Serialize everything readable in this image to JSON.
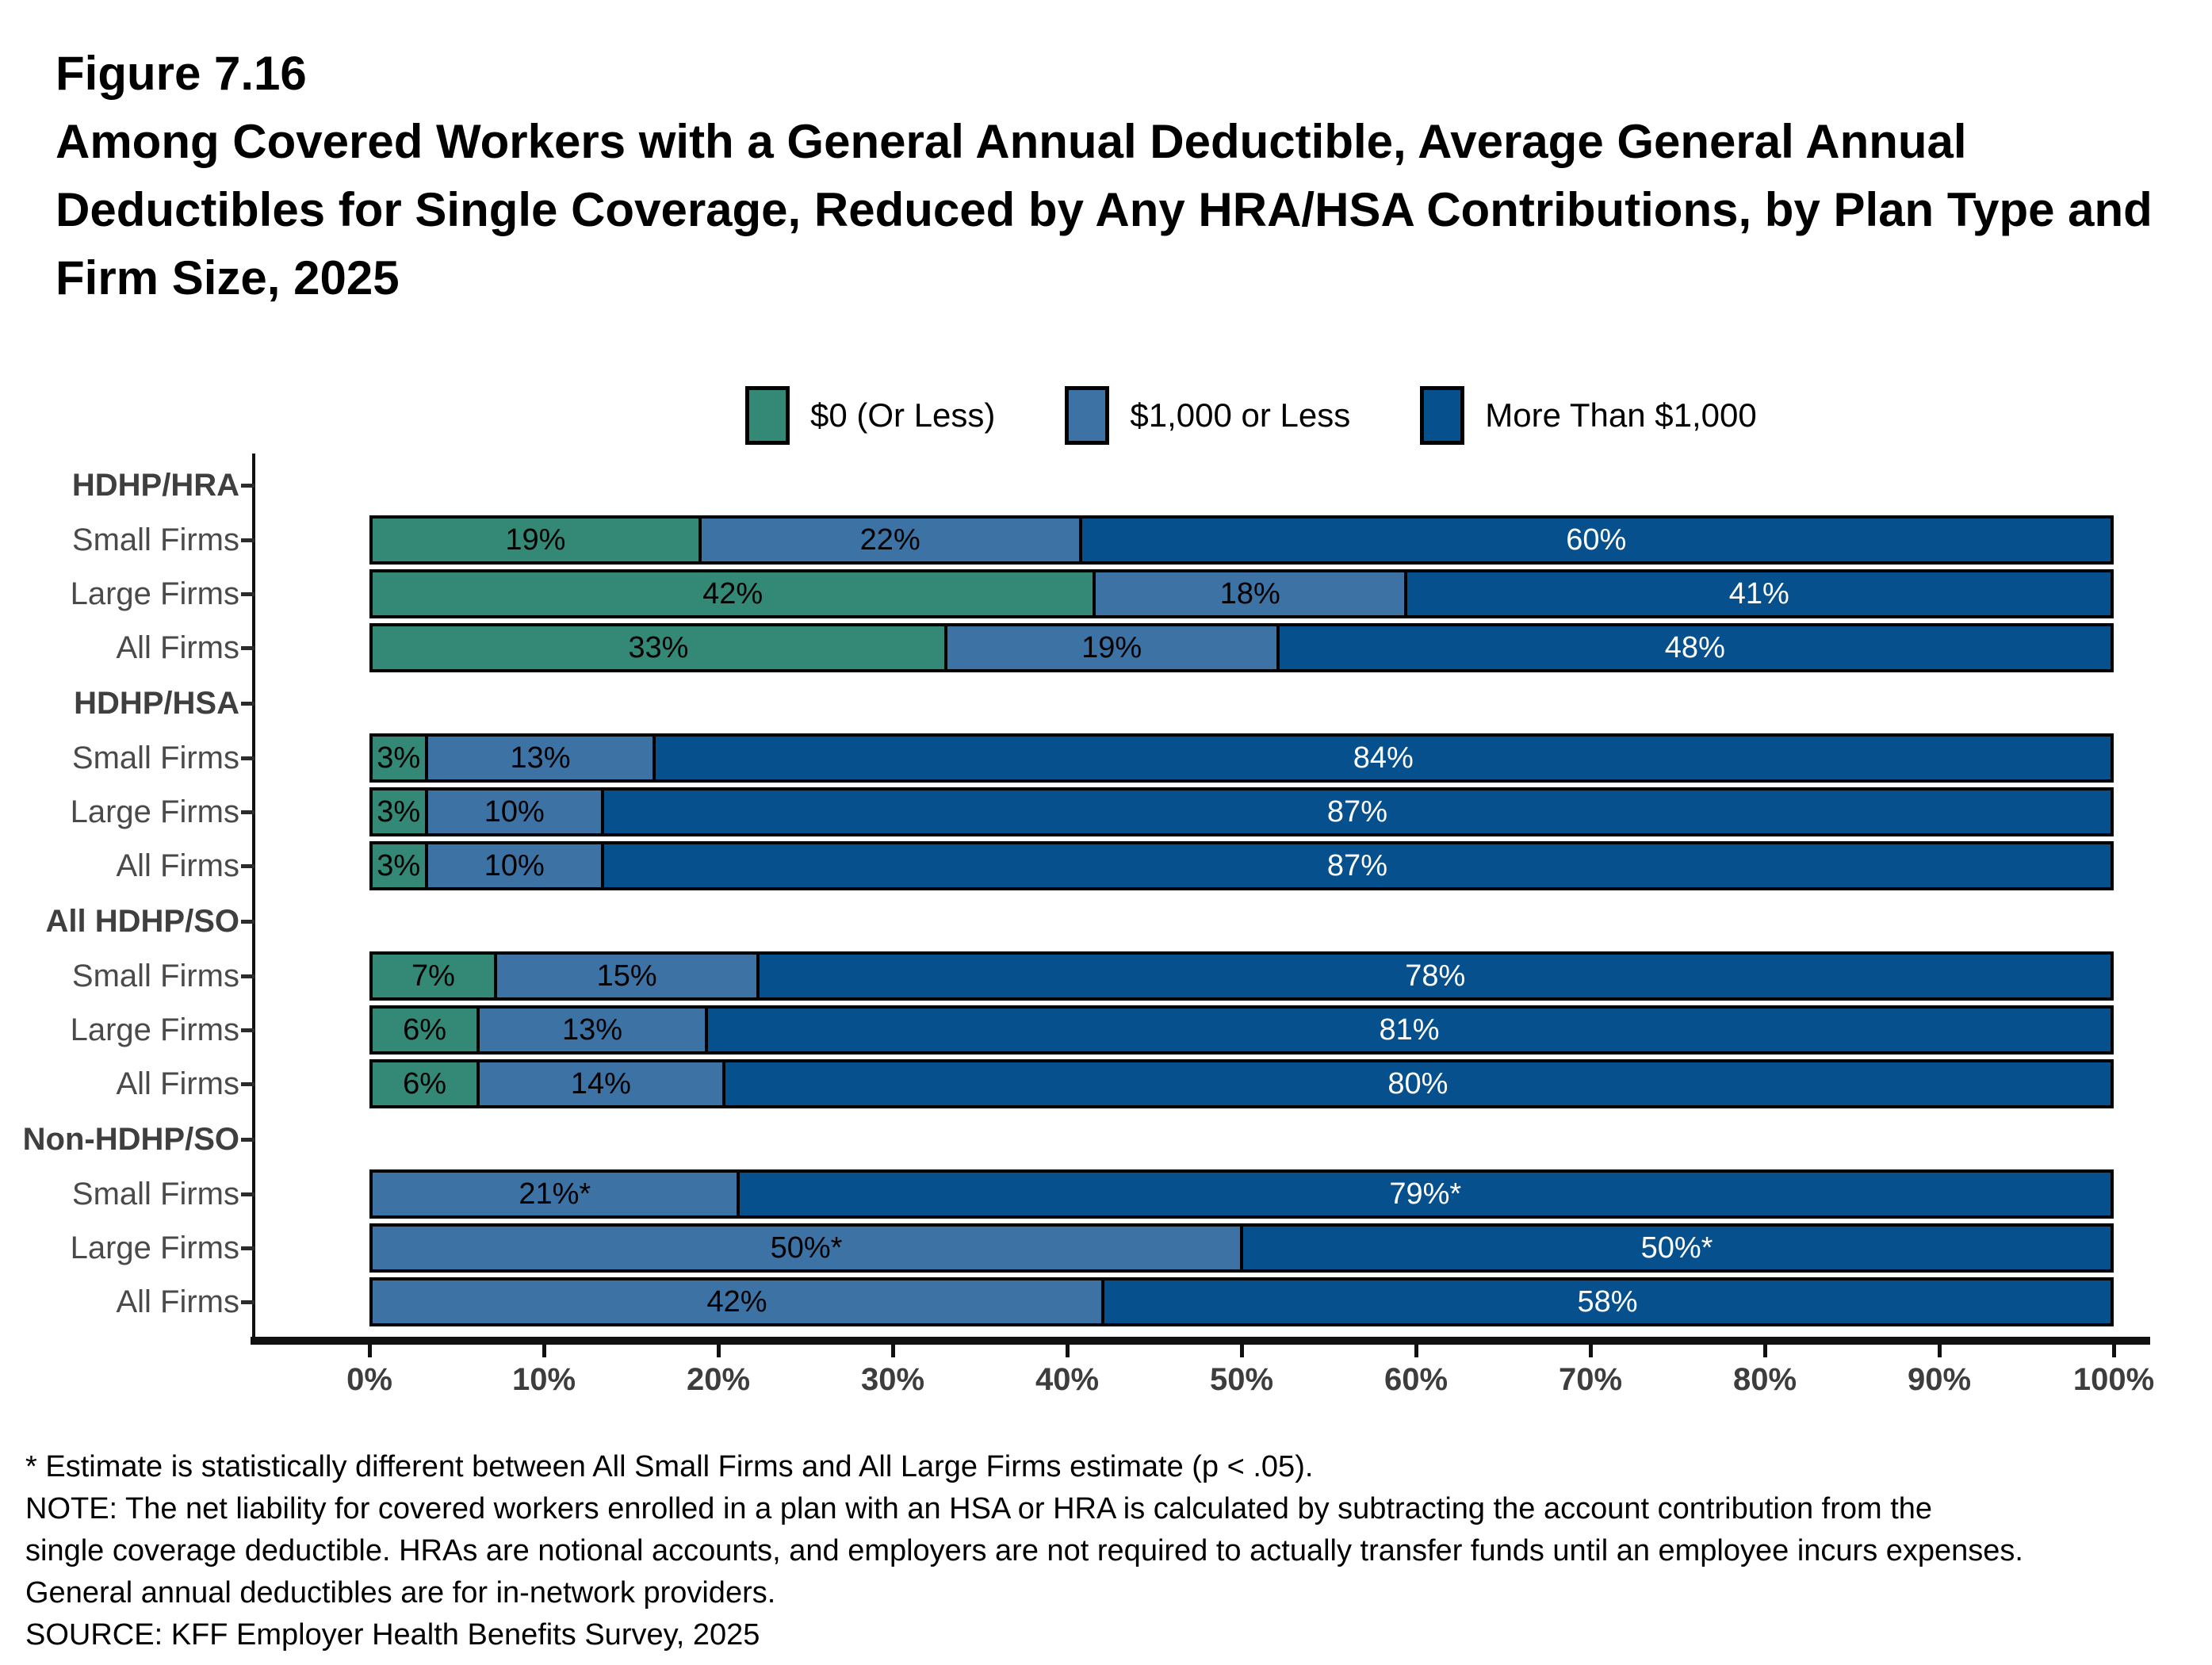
{
  "figure": {
    "number": "Figure 7.16",
    "title_lines": [
      "Among Covered Workers with a General Annual Deductible, Average General Annual",
      "Deductibles for Single Coverage, Reduced by Any HRA/HSA Contributions, by Plan Type and",
      "Firm Size, 2025"
    ]
  },
  "legend": {
    "items": [
      {
        "label": "$0 (Or Less)",
        "color": "#348876",
        "text_color": "#000000"
      },
      {
        "label": "$1,000 or Less",
        "color": "#3D72A4",
        "text_color": "#000000"
      },
      {
        "label": "More Than $1,000",
        "color": "#07508E",
        "text_color": "#FFFFFF"
      }
    ]
  },
  "chart_data": {
    "type": "bar",
    "orientation": "horizontal",
    "stacked": true,
    "unit": "percent",
    "xlim": [
      0,
      100
    ],
    "x_ticks": [
      "0%",
      "10%",
      "20%",
      "30%",
      "40%",
      "50%",
      "60%",
      "70%",
      "80%",
      "90%",
      "100%"
    ],
    "legend_position": "top",
    "series_names": [
      "$0 (Or Less)",
      "$1,000 or Less",
      "More Than $1,000"
    ],
    "groups": [
      {
        "group": "HDHP/HRA",
        "rows": [
          {
            "label": "Small Firms",
            "values": [
              19,
              22,
              60
            ],
            "display": [
              "19%",
              "22%",
              "60%"
            ]
          },
          {
            "label": "Large Firms",
            "values": [
              42,
              18,
              41
            ],
            "display": [
              "42%",
              "18%",
              "41%"
            ]
          },
          {
            "label": "All Firms",
            "values": [
              33,
              19,
              48
            ],
            "display": [
              "33%",
              "19%",
              "48%"
            ]
          }
        ]
      },
      {
        "group": "HDHP/HSA",
        "rows": [
          {
            "label": "Small Firms",
            "values": [
              3,
              13,
              84
            ],
            "display": [
              "3%",
              "13%",
              "84%"
            ]
          },
          {
            "label": "Large Firms",
            "values": [
              3,
              10,
              87
            ],
            "display": [
              "3%",
              "10%",
              "87%"
            ]
          },
          {
            "label": "All Firms",
            "values": [
              3,
              10,
              87
            ],
            "display": [
              "3%",
              "10%",
              "87%"
            ]
          }
        ]
      },
      {
        "group": "All HDHP/SO",
        "rows": [
          {
            "label": "Small Firms",
            "values": [
              7,
              15,
              78
            ],
            "display": [
              "7%",
              "15%",
              "78%"
            ]
          },
          {
            "label": "Large Firms",
            "values": [
              6,
              13,
              81
            ],
            "display": [
              "6%",
              "13%",
              "81%"
            ]
          },
          {
            "label": "All Firms",
            "values": [
              6,
              14,
              80
            ],
            "display": [
              "6%",
              "14%",
              "80%"
            ]
          }
        ]
      },
      {
        "group": "Non-HDHP/SO",
        "rows": [
          {
            "label": "Small Firms",
            "values": [
              null,
              21,
              79
            ],
            "display": [
              null,
              "21%*",
              "79%*"
            ]
          },
          {
            "label": "Large Firms",
            "values": [
              null,
              50,
              50
            ],
            "display": [
              null,
              "50%*",
              "50%*"
            ]
          },
          {
            "label": "All Firms",
            "values": [
              null,
              42,
              58
            ],
            "display": [
              null,
              "42%",
              "58%"
            ]
          }
        ]
      }
    ]
  },
  "footnotes": [
    "* Estimate is statistically different between All Small Firms and All Large Firms estimate (p < .05).",
    "NOTE: The net liability for covered workers enrolled in a plan with an HSA or HRA is calculated by subtracting the account contribution from the",
    "single coverage deductible. HRAs are notional accounts, and employers are not required to actually transfer funds until an employee incurs expenses.",
    "General annual deductibles are for in-network providers.",
    "SOURCE: KFF Employer Health Benefits Survey, 2025"
  ],
  "colors": {
    "green": "#348876",
    "medium_blue": "#3D72A4",
    "dark_blue": "#07508E",
    "axis": "#111111",
    "axis_text": "#3D3D3D",
    "label_text": "#3F3F3F"
  }
}
